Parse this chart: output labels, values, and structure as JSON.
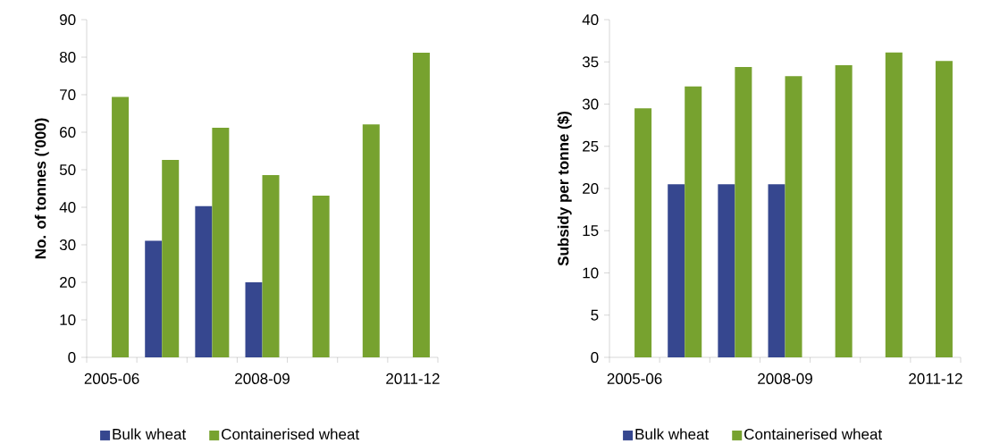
{
  "chart_data": [
    {
      "type": "bar",
      "ylabel": "No. of tonnes ('000)",
      "categories": [
        "2005-06",
        null,
        null,
        "2008-09",
        null,
        null,
        "2011-12"
      ],
      "ylim": [
        0,
        90
      ],
      "yticks": [
        0,
        10,
        20,
        30,
        40,
        50,
        60,
        70,
        80,
        90
      ],
      "legend": "bottom",
      "series": [
        {
          "name": "Bulk wheat",
          "color": "#36478f",
          "values": [
            null,
            31.1,
            40.3,
            20.0,
            null,
            null,
            null
          ]
        },
        {
          "name": "Containerised wheat",
          "color": "#77a22f",
          "values": [
            69.4,
            52.6,
            61.2,
            48.6,
            43.1,
            62.1,
            81.2
          ]
        }
      ]
    },
    {
      "type": "bar",
      "ylabel": "Subsidy per tonne ($)",
      "categories": [
        "2005-06",
        null,
        null,
        "2008-09",
        null,
        null,
        "2011-12"
      ],
      "ylim": [
        0,
        40
      ],
      "yticks": [
        0,
        5,
        10,
        15,
        20,
        25,
        30,
        35,
        40
      ],
      "legend": "bottom",
      "series": [
        {
          "name": "Bulk wheat",
          "color": "#36478f",
          "values": [
            null,
            20.5,
            20.5,
            20.5,
            null,
            null,
            null
          ]
        },
        {
          "name": "Containerised wheat",
          "color": "#77a22f",
          "values": [
            29.5,
            32.1,
            34.4,
            33.3,
            34.6,
            36.1,
            35.1
          ]
        }
      ]
    }
  ]
}
